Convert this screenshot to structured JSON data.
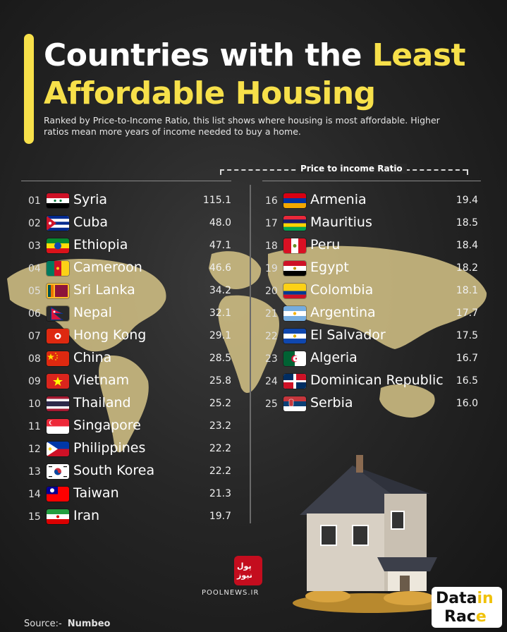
{
  "title": {
    "part1": "Countries with the ",
    "highlight": "Least",
    "part2": "Affordable Housing"
  },
  "subtitle": "Ranked by Price-to-Income Ratio, this list shows where housing is most affordable. Higher ratios mean more years of income needed to buy a home.",
  "column_header": "Price to income Ratio",
  "colors": {
    "accent": "#f7e04a",
    "background": "#1e1e1e",
    "map": "#d6c487"
  },
  "chart_data": {
    "type": "table",
    "title": "Countries with the Least Affordable Housing",
    "value_label": "Price to income Ratio",
    "rows": [
      {
        "rank": "01",
        "country": "Syria",
        "value": "115.1",
        "flag": "syria-flag"
      },
      {
        "rank": "02",
        "country": "Cuba",
        "value": "48.0",
        "flag": "cuba-flag"
      },
      {
        "rank": "03",
        "country": "Ethiopia",
        "value": "47.1",
        "flag": "ethiopia-flag"
      },
      {
        "rank": "04",
        "country": "Cameroon",
        "value": "46.6",
        "flag": "cameroon-flag"
      },
      {
        "rank": "05",
        "country": "Sri Lanka",
        "value": "34.2",
        "flag": "sri-lanka-flag"
      },
      {
        "rank": "06",
        "country": "Nepal",
        "value": "32.1",
        "flag": "nepal-flag"
      },
      {
        "rank": "07",
        "country": "Hong Kong",
        "value": "29.1",
        "flag": "hong-kong-flag"
      },
      {
        "rank": "08",
        "country": "China",
        "value": "28.5",
        "flag": "china-flag"
      },
      {
        "rank": "09",
        "country": "Vietnam",
        "value": "25.8",
        "flag": "vietnam-flag"
      },
      {
        "rank": "10",
        "country": "Thailand",
        "value": "25.2",
        "flag": "thailand-flag"
      },
      {
        "rank": "11",
        "country": "Singapore",
        "value": "23.2",
        "flag": "singapore-flag"
      },
      {
        "rank": "12",
        "country": "Philippines",
        "value": "22.2",
        "flag": "philippines-flag"
      },
      {
        "rank": "13",
        "country": "South Korea",
        "value": "22.2",
        "flag": "south-korea-flag"
      },
      {
        "rank": "14",
        "country": "Taiwan",
        "value": "21.3",
        "flag": "taiwan-flag"
      },
      {
        "rank": "15",
        "country": "Iran",
        "value": "19.7",
        "flag": "iran-flag"
      },
      {
        "rank": "16",
        "country": "Armenia",
        "value": "19.4",
        "flag": "armenia-flag"
      },
      {
        "rank": "17",
        "country": "Mauritius",
        "value": "18.5",
        "flag": "mauritius-flag"
      },
      {
        "rank": "18",
        "country": "Peru",
        "value": "18.4",
        "flag": "peru-flag"
      },
      {
        "rank": "19",
        "country": "Egypt",
        "value": "18.2",
        "flag": "egypt-flag"
      },
      {
        "rank": "20",
        "country": "Colombia",
        "value": "18.1",
        "flag": "colombia-flag"
      },
      {
        "rank": "21",
        "country": "Argentina",
        "value": "17.7",
        "flag": "argentina-flag"
      },
      {
        "rank": "22",
        "country": "El Salvador",
        "value": "17.5",
        "flag": "el-salvador-flag"
      },
      {
        "rank": "23",
        "country": "Algeria",
        "value": "16.7",
        "flag": "algeria-flag"
      },
      {
        "rank": "24",
        "country": "Dominican Republic",
        "value": "16.5",
        "flag": "dominican-republic-flag"
      },
      {
        "rank": "25",
        "country": "Serbia",
        "value": "16.0",
        "flag": "serbia-flag"
      }
    ]
  },
  "watermark": {
    "text": "POOLNEWS.IR",
    "mark": "پول نیوز"
  },
  "source": {
    "label": "Source:-",
    "name": "Numbeo"
  },
  "brand": {
    "line1a": "Data",
    "line1b": "in",
    "line2a": "Rac",
    "line2b": "e"
  }
}
